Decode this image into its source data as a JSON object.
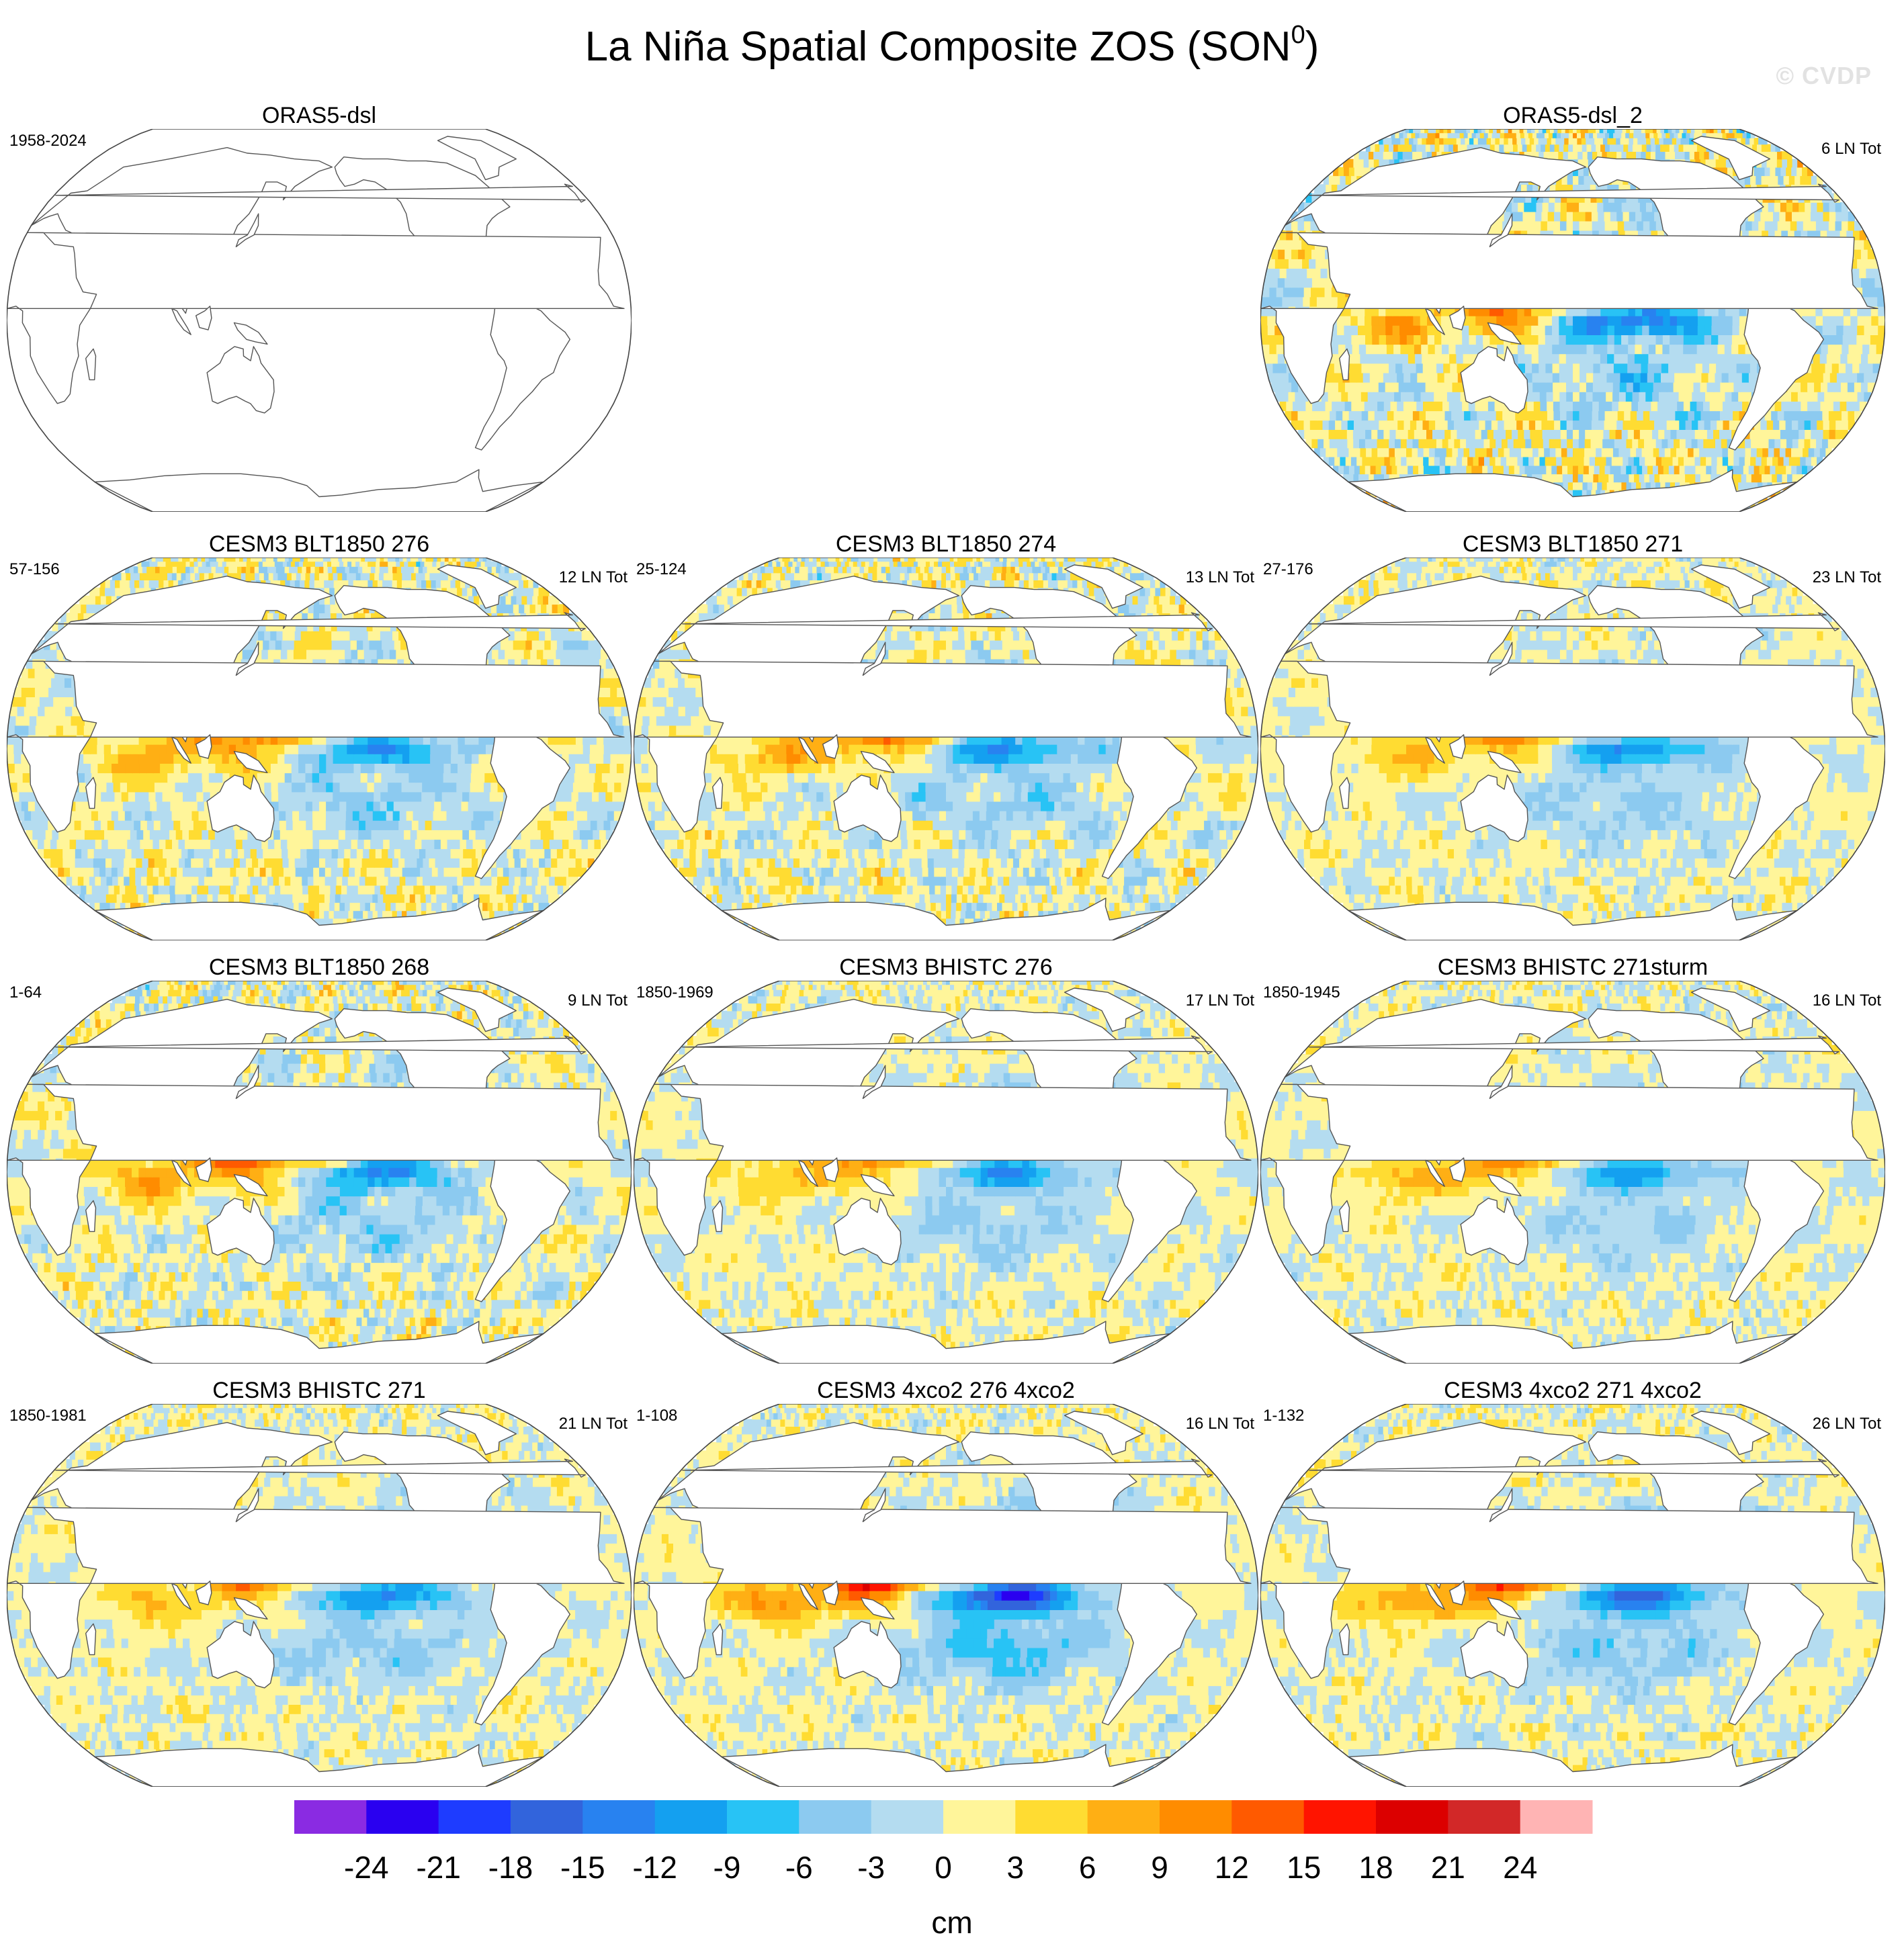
{
  "title": "La Niña Spatial Composite ZOS (SON",
  "title_superscript": "0",
  "title_close": ")",
  "watermark": "© CVDP",
  "chart_data": {
    "type": "heatmap",
    "projection": "robinson",
    "variable": "ZOS",
    "season": "SON",
    "unit": "cm",
    "panels": [
      {
        "title": "ORAS5-dsl",
        "period": "1958-2024",
        "count": "",
        "empty": true,
        "pattern": null
      },
      {
        "title": "ORAS5-dsl_2",
        "period": "",
        "count": "6 LN Tot",
        "empty": false,
        "pattern": {
          "west_max": 12,
          "east_min": -15,
          "noise": 4
        }
      },
      {
        "title": "CESM3 BLT1850 276",
        "period": "57-156",
        "count": "12 LN Tot",
        "empty": false,
        "pattern": {
          "west_max": 12,
          "east_min": -12,
          "noise": 3
        }
      },
      {
        "title": "CESM3 BLT1850 274",
        "period": "25-124",
        "count": "13 LN Tot",
        "empty": false,
        "pattern": {
          "west_max": 12,
          "east_min": -12,
          "noise": 3
        }
      },
      {
        "title": "CESM3 BLT1850 271",
        "period": "27-176",
        "count": "23 LN Tot",
        "empty": false,
        "pattern": {
          "west_max": 10,
          "east_min": -12,
          "noise": 2
        }
      },
      {
        "title": "CESM3 BLT1850 268",
        "period": "1-64",
        "count": "9 LN Tot",
        "empty": false,
        "pattern": {
          "west_max": 14,
          "east_min": -13,
          "noise": 3
        }
      },
      {
        "title": "CESM3 BHISTC 276",
        "period": "1850-1969",
        "count": "17 LN Tot",
        "empty": false,
        "pattern": {
          "west_max": 10,
          "east_min": -12,
          "noise": 2
        }
      },
      {
        "title": "CESM3 BHISTC 271sturm",
        "period": "1850-1945",
        "count": "16 LN Tot",
        "empty": false,
        "pattern": {
          "west_max": 11,
          "east_min": -11,
          "noise": 2
        }
      },
      {
        "title": "CESM3 BHISTC 271",
        "period": "1850-1981",
        "count": "21 LN Tot",
        "empty": false,
        "pattern": {
          "west_max": 10,
          "east_min": -13,
          "noise": 2
        }
      },
      {
        "title": "CESM3 4xco2 276 4xco2",
        "period": "1-108",
        "count": "16 LN Tot",
        "empty": false,
        "pattern": {
          "west_max": 17,
          "east_min": -21,
          "noise": 2
        }
      },
      {
        "title": "CESM3 4xco2 271 4xco2",
        "period": "1-132",
        "count": "26 LN Tot",
        "empty": false,
        "pattern": {
          "west_max": 15,
          "east_min": -16,
          "noise": 2
        }
      }
    ],
    "colorbar": {
      "levels": [
        -24,
        -21,
        -18,
        -15,
        -12,
        -9,
        -6,
        -3,
        0,
        3,
        6,
        9,
        12,
        15,
        18,
        21,
        24
      ],
      "colors": [
        "#8a2be2",
        "#2a00f0",
        "#1e3cff",
        "#3264dc",
        "#2882f0",
        "#14a0f0",
        "#28c3f5",
        "#8ccaf0",
        "#b4dcf0",
        "#fff59a",
        "#ffdc32",
        "#ffaf14",
        "#ff8c00",
        "#ff5a00",
        "#ff1400",
        "#dc0000",
        "#d22828",
        "#ffb4b4"
      ],
      "label": "cm"
    }
  }
}
